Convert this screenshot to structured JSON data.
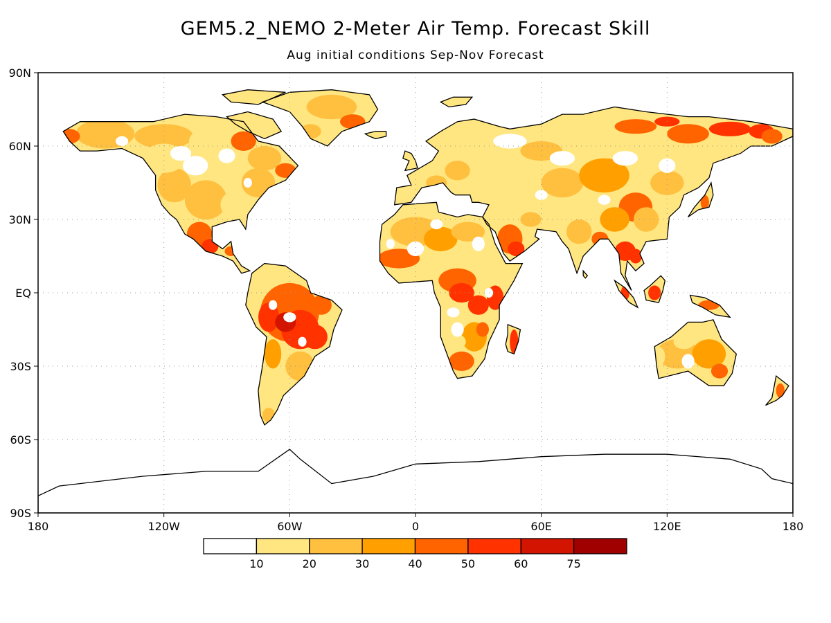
{
  "title": "GEM5.2_NEMO 2-Meter Air Temp. Forecast Skill",
  "subtitle": "Aug initial conditions   Sep-Nov Forecast",
  "map": {
    "projection": "cylindrical equidistant",
    "lon_range": [
      -180,
      180
    ],
    "lat_range": [
      -90,
      90
    ],
    "grid": "dotted",
    "lat_ticks": [
      {
        "lat": 90,
        "label": "90N"
      },
      {
        "lat": 60,
        "label": "60N"
      },
      {
        "lat": 30,
        "label": "30N"
      },
      {
        "lat": 0,
        "label": "EQ"
      },
      {
        "lat": -30,
        "label": "30S"
      },
      {
        "lat": -60,
        "label": "60S"
      },
      {
        "lat": -90,
        "label": "90S"
      }
    ],
    "lon_ticks": [
      {
        "lon": -180,
        "label": "180"
      },
      {
        "lon": -120,
        "label": "120W"
      },
      {
        "lon": -60,
        "label": "60W"
      },
      {
        "lon": 0,
        "label": "0"
      },
      {
        "lon": 60,
        "label": "60E"
      },
      {
        "lon": 120,
        "label": "120E"
      },
      {
        "lon": 180,
        "label": "180"
      }
    ]
  },
  "colorbar": {
    "bins": [
      {
        "color": "#ffffff"
      },
      {
        "color": "#ffe680"
      },
      {
        "color": "#ffbf3f"
      },
      {
        "color": "#ffa000"
      },
      {
        "color": "#ff6400"
      },
      {
        "color": "#ff3200"
      },
      {
        "color": "#d21400"
      },
      {
        "color": "#a00000"
      }
    ],
    "labels": [
      "10",
      "20",
      "30",
      "40",
      "50",
      "60",
      "75"
    ]
  },
  "land_colors": {
    "outline": "#000000",
    "light": "#ffe680",
    "mid": "#ffbf3f",
    "orange": "#ffa000",
    "dark": "#ff6400",
    "red": "#ff3200",
    "deep": "#d21400"
  }
}
